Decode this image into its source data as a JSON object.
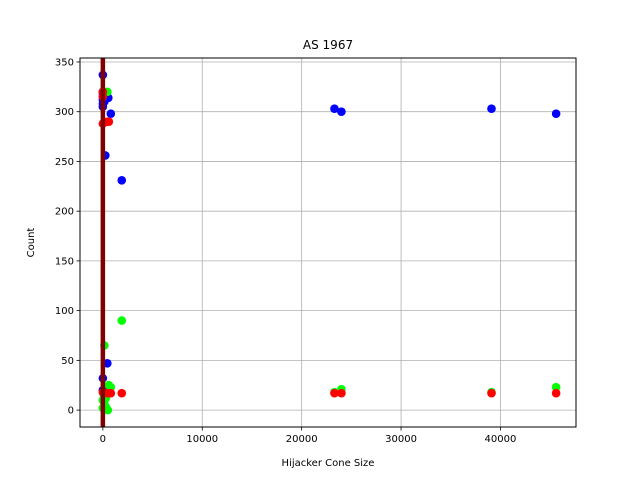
{
  "chart_data": {
    "type": "scatter",
    "title": "AS 1967",
    "xlabel": "Hijacker Cone Size",
    "ylabel": "Count",
    "xlim": [
      -2300,
      47600
    ],
    "ylim": [
      -17,
      354
    ],
    "xticks": [
      0,
      10000,
      20000,
      30000,
      40000
    ],
    "xtick_labels": [
      "0",
      "10000",
      "20000",
      "30000",
      "40000"
    ],
    "yticks": [
      0,
      50,
      100,
      150,
      200,
      250,
      300,
      350
    ],
    "ytick_labels": [
      "0",
      "50",
      "100",
      "150",
      "200",
      "250",
      "300",
      "350"
    ],
    "grid": true,
    "vline": {
      "x": 0,
      "color": "#800000"
    },
    "series": [
      {
        "color": "#0000ff",
        "points": [
          [
            0,
            337
          ],
          [
            0,
            320
          ],
          [
            0,
            318
          ],
          [
            0,
            315
          ],
          [
            0,
            312
          ],
          [
            0,
            308
          ],
          [
            0,
            305
          ],
          [
            150,
            310
          ],
          [
            350,
            316
          ],
          [
            550,
            314
          ],
          [
            800,
            298
          ],
          [
            250,
            256
          ],
          [
            1900,
            231
          ],
          [
            23300,
            303
          ],
          [
            24000,
            300
          ],
          [
            39100,
            303
          ],
          [
            45600,
            298
          ],
          [
            450,
            47
          ],
          [
            0,
            32
          ],
          [
            0,
            20
          ]
        ]
      },
      {
        "color": "#00ff00",
        "points": [
          [
            450,
            320
          ],
          [
            150,
            65
          ],
          [
            1900,
            90
          ],
          [
            600,
            25
          ],
          [
            800,
            23
          ],
          [
            0,
            10
          ],
          [
            100,
            8
          ],
          [
            200,
            5
          ],
          [
            300,
            3
          ],
          [
            400,
            1
          ],
          [
            500,
            0
          ],
          [
            0,
            2
          ],
          [
            100,
            15
          ],
          [
            300,
            12
          ],
          [
            23300,
            18
          ],
          [
            24000,
            21
          ],
          [
            39100,
            18
          ],
          [
            45600,
            23
          ]
        ]
      },
      {
        "color": "#ff0000",
        "points": [
          [
            0,
            320
          ],
          [
            0,
            315
          ],
          [
            0,
            288
          ],
          [
            450,
            290
          ],
          [
            600,
            290
          ],
          [
            0,
            18
          ],
          [
            500,
            17
          ],
          [
            800,
            17
          ],
          [
            1900,
            17
          ],
          [
            23300,
            17
          ],
          [
            24000,
            17
          ],
          [
            39100,
            17
          ],
          [
            45600,
            17
          ]
        ]
      }
    ]
  }
}
